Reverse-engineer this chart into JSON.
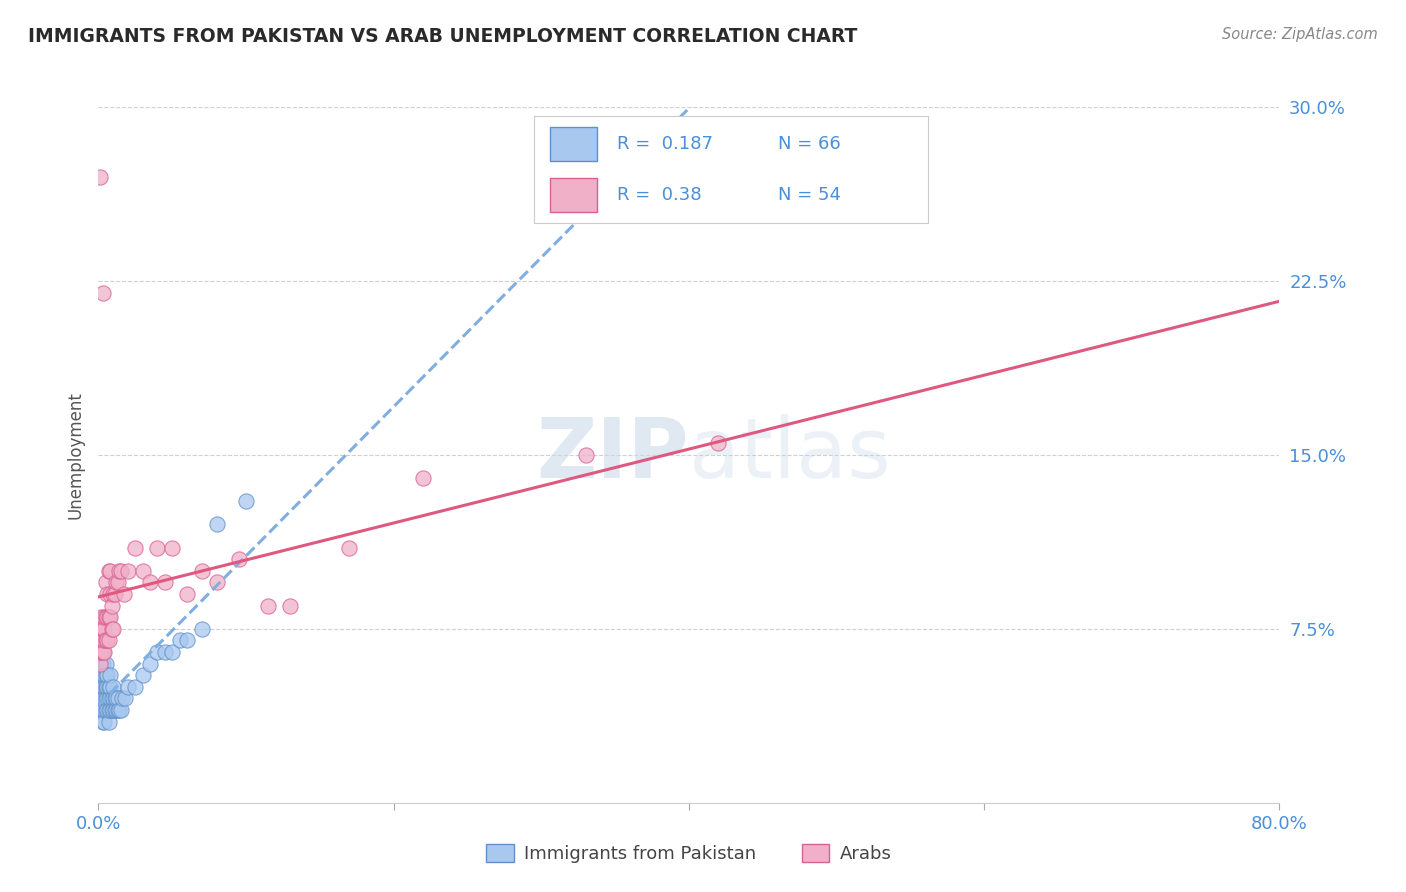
{
  "title": "IMMIGRANTS FROM PAKISTAN VS ARAB UNEMPLOYMENT CORRELATION CHART",
  "source": "Source: ZipAtlas.com",
  "ylabel": "Unemployment",
  "xlim": [
    0.0,
    0.8
  ],
  "ylim": [
    0.0,
    0.3
  ],
  "yticks": [
    0.075,
    0.15,
    0.225,
    0.3
  ],
  "ytick_labels": [
    "7.5%",
    "15.0%",
    "22.5%",
    "30.0%"
  ],
  "xtick_positions": [
    0.0,
    0.2,
    0.4,
    0.6,
    0.8
  ],
  "xtick_labels": [
    "0.0%",
    "",
    "",
    "",
    "80.0%"
  ],
  "series1_name": "Immigrants from Pakistan",
  "series1_color": "#a8c8f0",
  "series1_edge": "#6090c8",
  "series1_R": 0.187,
  "series1_N": 66,
  "series2_name": "Arabs",
  "series2_color": "#f0b0c8",
  "series2_edge": "#d86090",
  "series2_R": 0.38,
  "series2_N": 54,
  "background_color": "#ffffff",
  "grid_color": "#d0d0d0",
  "title_color": "#2a2a2a",
  "axis_label_color": "#4a90d9",
  "trend1_color": "#80aee0",
  "trend1_style": "--",
  "trend2_color": "#e05880",
  "trend2_style": "-",
  "scatter1_x": [
    0.001,
    0.001,
    0.001,
    0.001,
    0.001,
    0.002,
    0.002,
    0.002,
    0.002,
    0.002,
    0.003,
    0.003,
    0.003,
    0.003,
    0.003,
    0.003,
    0.003,
    0.004,
    0.004,
    0.004,
    0.004,
    0.004,
    0.005,
    0.005,
    0.005,
    0.005,
    0.005,
    0.006,
    0.006,
    0.006,
    0.006,
    0.007,
    0.007,
    0.007,
    0.007,
    0.008,
    0.008,
    0.008,
    0.008,
    0.009,
    0.009,
    0.01,
    0.01,
    0.01,
    0.011,
    0.011,
    0.012,
    0.012,
    0.013,
    0.013,
    0.014,
    0.015,
    0.016,
    0.018,
    0.02,
    0.025,
    0.03,
    0.035,
    0.04,
    0.045,
    0.05,
    0.055,
    0.06,
    0.07,
    0.08,
    0.1
  ],
  "scatter1_y": [
    0.04,
    0.045,
    0.05,
    0.055,
    0.06,
    0.04,
    0.045,
    0.05,
    0.055,
    0.06,
    0.035,
    0.04,
    0.045,
    0.05,
    0.055,
    0.06,
    0.065,
    0.035,
    0.04,
    0.045,
    0.05,
    0.055,
    0.04,
    0.045,
    0.05,
    0.055,
    0.06,
    0.04,
    0.045,
    0.05,
    0.055,
    0.035,
    0.04,
    0.045,
    0.05,
    0.04,
    0.045,
    0.05,
    0.055,
    0.04,
    0.045,
    0.04,
    0.045,
    0.05,
    0.04,
    0.045,
    0.04,
    0.045,
    0.04,
    0.045,
    0.04,
    0.04,
    0.045,
    0.045,
    0.05,
    0.05,
    0.055,
    0.06,
    0.065,
    0.065,
    0.065,
    0.07,
    0.07,
    0.075,
    0.12,
    0.13
  ],
  "scatter2_x": [
    0.001,
    0.001,
    0.001,
    0.002,
    0.002,
    0.002,
    0.002,
    0.003,
    0.003,
    0.003,
    0.003,
    0.004,
    0.004,
    0.004,
    0.004,
    0.005,
    0.005,
    0.005,
    0.006,
    0.006,
    0.006,
    0.007,
    0.007,
    0.007,
    0.008,
    0.008,
    0.008,
    0.009,
    0.009,
    0.01,
    0.01,
    0.011,
    0.012,
    0.013,
    0.014,
    0.015,
    0.017,
    0.02,
    0.025,
    0.03,
    0.035,
    0.04,
    0.045,
    0.05,
    0.06,
    0.07,
    0.08,
    0.095,
    0.115,
    0.13,
    0.17,
    0.22,
    0.33,
    0.42
  ],
  "scatter2_y": [
    0.06,
    0.065,
    0.27,
    0.065,
    0.07,
    0.075,
    0.08,
    0.065,
    0.07,
    0.075,
    0.22,
    0.065,
    0.07,
    0.075,
    0.08,
    0.07,
    0.08,
    0.095,
    0.07,
    0.08,
    0.09,
    0.07,
    0.08,
    0.1,
    0.08,
    0.09,
    0.1,
    0.075,
    0.085,
    0.075,
    0.09,
    0.09,
    0.095,
    0.095,
    0.1,
    0.1,
    0.09,
    0.1,
    0.11,
    0.1,
    0.095,
    0.11,
    0.095,
    0.11,
    0.09,
    0.1,
    0.095,
    0.105,
    0.085,
    0.085,
    0.11,
    0.14,
    0.15,
    0.155
  ]
}
